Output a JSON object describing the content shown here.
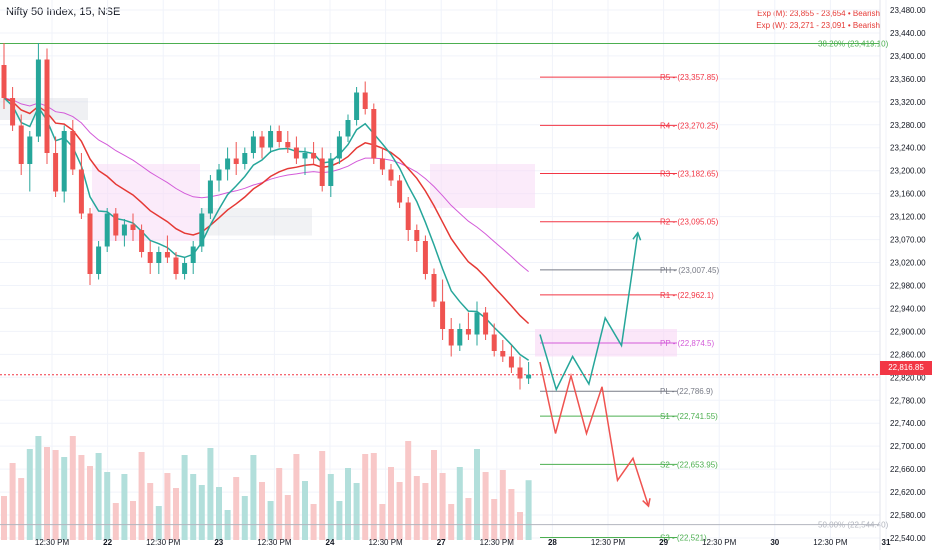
{
  "header": {
    "title": "Nifty 50 Index, 15, NSE",
    "exp_monthly": "Exp (M): 23,855 - 23,654 • Bearish",
    "exp_weekly": "Exp (W): 23,271 - 23,091 • Bearish"
  },
  "colors": {
    "bull": "#26a69a",
    "bear": "#ef5350",
    "vol_bull": "#b2dfdb",
    "vol_bear": "#f8c8c8",
    "ema_fast": "#26a69a",
    "ema_red": "#e53935",
    "ema_purple": "#d35bd9",
    "fib_green": "#4caf50",
    "grid": "#f0f3fa",
    "axis_text": "#131722"
  },
  "chart_data": {
    "type": "candlestick",
    "symbol": "Nifty 50 Index",
    "interval": "15",
    "exchange": "NSE",
    "ylim": [
      22520,
      23480
    ],
    "y_ticks": [
      "23,480.00",
      "23,440.00",
      "23,400.00",
      "23,360.00",
      "23,320.00",
      "23,280.00",
      "23,240.00",
      "23,200.00",
      "23,160.00",
      "23,120.00",
      "23,070.00",
      "23,020.00",
      "22,980.00",
      "22,940.00",
      "22,900.00",
      "22,860.00",
      "22,820.00",
      "22,780.00",
      "22,740.00",
      "22,700.00",
      "22,660.00",
      "22,620.00",
      "22,580.00",
      "22,540.00"
    ],
    "x_ticks": [
      "12:30 PM",
      "22",
      "12:30 PM",
      "23",
      "12:30 PM",
      "24",
      "12:30 PM",
      "27",
      "12:30 PM",
      "28",
      "12:30 PM",
      "29",
      "12:30 PM",
      "30",
      "12:30 PM",
      "31"
    ],
    "last_price": "22,816.85",
    "candles": [
      [
        23380,
        23420,
        23300,
        23320
      ],
      [
        23320,
        23340,
        23260,
        23270
      ],
      [
        23270,
        23290,
        23180,
        23200
      ],
      [
        23200,
        23260,
        23150,
        23250
      ],
      [
        23250,
        23420,
        23240,
        23390
      ],
      [
        23390,
        23410,
        23200,
        23220
      ],
      [
        23220,
        23250,
        23140,
        23150
      ],
      [
        23150,
        23270,
        23130,
        23260
      ],
      [
        23260,
        23280,
        23180,
        23190
      ],
      [
        23190,
        23220,
        23100,
        23110
      ],
      [
        23110,
        23120,
        22980,
        23000
      ],
      [
        23000,
        23060,
        22990,
        23050
      ],
      [
        23050,
        23120,
        23040,
        23110
      ],
      [
        23110,
        23120,
        23060,
        23070
      ],
      [
        23070,
        23100,
        23050,
        23090
      ],
      [
        23090,
        23110,
        23060,
        23080
      ],
      [
        23080,
        23090,
        23030,
        23040
      ],
      [
        23040,
        23060,
        23000,
        23020
      ],
      [
        23020,
        23050,
        23000,
        23040
      ],
      [
        23040,
        23070,
        23020,
        23030
      ],
      [
        23030,
        23040,
        22990,
        23000
      ],
      [
        23000,
        23030,
        22990,
        23020
      ],
      [
        23020,
        23060,
        23000,
        23050
      ],
      [
        23050,
        23120,
        23040,
        23110
      ],
      [
        23110,
        23180,
        23100,
        23170
      ],
      [
        23170,
        23200,
        23150,
        23190
      ],
      [
        23190,
        23230,
        23170,
        23210
      ],
      [
        23210,
        23240,
        23180,
        23200
      ],
      [
        23200,
        23230,
        23190,
        23220
      ],
      [
        23220,
        23260,
        23210,
        23250
      ],
      [
        23250,
        23260,
        23210,
        23230
      ],
      [
        23230,
        23270,
        23220,
        23260
      ],
      [
        23260,
        23270,
        23230,
        23240
      ],
      [
        23240,
        23260,
        23220,
        23230
      ],
      [
        23230,
        23250,
        23200,
        23210
      ],
      [
        23210,
        23230,
        23180,
        23220
      ],
      [
        23220,
        23240,
        23200,
        23210
      ],
      [
        23210,
        23230,
        23150,
        23160
      ],
      [
        23160,
        23220,
        23140,
        23210
      ],
      [
        23210,
        23260,
        23200,
        23250
      ],
      [
        23250,
        23290,
        23240,
        23280
      ],
      [
        23280,
        23340,
        23270,
        23330
      ],
      [
        23330,
        23350,
        23290,
        23300
      ],
      [
        23300,
        23310,
        23200,
        23210
      ],
      [
        23210,
        23230,
        23180,
        23190
      ],
      [
        23190,
        23200,
        23160,
        23170
      ],
      [
        23170,
        23180,
        23120,
        23130
      ],
      [
        23130,
        23140,
        23060,
        23080
      ],
      [
        23080,
        23090,
        23040,
        23060
      ],
      [
        23060,
        23070,
        22990,
        23000
      ],
      [
        23000,
        23010,
        22940,
        22950
      ],
      [
        22950,
        22990,
        22880,
        22900
      ],
      [
        22900,
        22920,
        22850,
        22870
      ],
      [
        22870,
        22910,
        22860,
        22900
      ],
      [
        22900,
        22930,
        22880,
        22890
      ],
      [
        22890,
        22950,
        22870,
        22930
      ],
      [
        22930,
        22940,
        22880,
        22890
      ],
      [
        22890,
        22910,
        22850,
        22860
      ],
      [
        22860,
        22880,
        22840,
        22850
      ],
      [
        22850,
        22870,
        22820,
        22830
      ],
      [
        22830,
        22850,
        22790,
        22810
      ],
      [
        22810,
        22840,
        22800,
        22817
      ]
    ],
    "pivot_levels": [
      {
        "label": "R5 - (23,357.85)",
        "value": 23357.85,
        "color": "#f23645"
      },
      {
        "label": "R4 - (23,270.25)",
        "value": 23270.25,
        "color": "#f23645"
      },
      {
        "label": "R3 - (23,182.65)",
        "value": 23182.65,
        "color": "#f23645"
      },
      {
        "label": "R2 - (23,095.05)",
        "value": 23095.05,
        "color": "#f23645"
      },
      {
        "label": "PH - (23,007.45)",
        "value": 23007.45,
        "color": "#787b86"
      },
      {
        "label": "R1 - (22,962.1)",
        "value": 22962.1,
        "color": "#f23645"
      },
      {
        "label": "PP - (22,874.5)",
        "value": 22874.5,
        "color": "#d35bd9"
      },
      {
        "label": "PL - (22,786.9)",
        "value": 22786.9,
        "color": "#787b86"
      },
      {
        "label": "S1 - (22,741.55)",
        "value": 22741.55,
        "color": "#4caf50"
      },
      {
        "label": "S2 - (22,653.95)",
        "value": 22653.95,
        "color": "#4caf50"
      },
      {
        "label": "S3 - (22,521)",
        "value": 22521,
        "color": "#4caf50"
      }
    ],
    "fib_levels": [
      {
        "label": "38.20% (23,419.10)",
        "value": 23419.1,
        "color": "#4caf50"
      },
      {
        "label": "50.00% (22,544.40)",
        "value": 22544.4,
        "color": "#b2b5be"
      }
    ],
    "projection_up": [
      22890,
      22790,
      22850,
      22800,
      22920,
      22870,
      23075
    ],
    "projection_down": [
      22840,
      22710,
      22815,
      22710,
      22795,
      22625,
      22665,
      22578
    ]
  }
}
